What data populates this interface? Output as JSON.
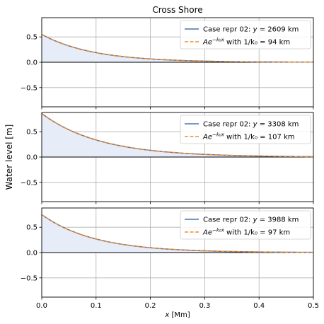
{
  "chart_data": [
    {
      "type": "line",
      "title": "Cross Shore",
      "xlim": [
        0,
        0.5
      ],
      "ylim": [
        -0.88,
        0.88
      ],
      "xticks": [
        0.0,
        0.1,
        0.2,
        0.3,
        0.4,
        0.5
      ],
      "yticks": [
        -0.5,
        0.0,
        0.5
      ],
      "grid": true,
      "legend": "top-right",
      "series": [
        {
          "name": "Case repr 02: y = 2609 km",
          "label_parts": [
            "Case repr 02: ",
            "y",
            " = 2609 km"
          ],
          "kind": "solid",
          "color": "#4c72b0",
          "A": 0.55,
          "decay_km": 94,
          "fill": "#e6ecf8"
        },
        {
          "name": "Ae^(−k₀x) with 1/k₀ = 94 km",
          "label_parts": [
            "Ae",
            "−k₀x",
            " with 1/k₀ = 94 km"
          ],
          "kind": "dashed",
          "color": "#f28e2b",
          "A": 0.55,
          "decay_km": 94
        }
      ]
    },
    {
      "type": "line",
      "title": "",
      "xlim": [
        0,
        0.5
      ],
      "ylim": [
        -0.88,
        0.88
      ],
      "xticks": [
        0.0,
        0.1,
        0.2,
        0.3,
        0.4,
        0.5
      ],
      "yticks": [
        -0.5,
        0.0,
        0.5
      ],
      "ylabel": "Water level [m]",
      "grid": true,
      "legend": "top-right",
      "series": [
        {
          "name": "Case repr 02: y = 3308 km",
          "label_parts": [
            "Case repr 02: ",
            "y",
            " = 3308 km"
          ],
          "kind": "solid",
          "color": "#4c72b0",
          "A": 0.86,
          "decay_km": 107,
          "fill": "#e6ecf8"
        },
        {
          "name": "Ae^(−k₀x) with 1/k₀ = 107 km",
          "label_parts": [
            "Ae",
            "−k₀x",
            " with 1/k₀ = 107 km"
          ],
          "kind": "dashed",
          "color": "#f28e2b",
          "A": 0.86,
          "decay_km": 107
        }
      ]
    },
    {
      "type": "line",
      "title": "",
      "xlim": [
        0,
        0.5
      ],
      "ylim": [
        -0.88,
        0.88
      ],
      "xticks": [
        0.0,
        0.1,
        0.2,
        0.3,
        0.4,
        0.5
      ],
      "yticks": [
        -0.5,
        0.0,
        0.5
      ],
      "xlabel": "x [Mm]",
      "grid": true,
      "legend": "top-right",
      "series": [
        {
          "name": "Case repr 02: y = 3988 km",
          "label_parts": [
            "Case repr 02: ",
            "y",
            " = 3988 km"
          ],
          "kind": "solid",
          "color": "#4c72b0",
          "A": 0.75,
          "decay_km": 97,
          "fill": "#e6ecf8"
        },
        {
          "name": "Ae^(−k₀x) with 1/k₀ = 97 km",
          "label_parts": [
            "Ae",
            "−k₀x",
            " with 1/k₀ = 97 km"
          ],
          "kind": "dashed",
          "color": "#f28e2b",
          "A": 0.75,
          "decay_km": 97
        }
      ]
    }
  ]
}
